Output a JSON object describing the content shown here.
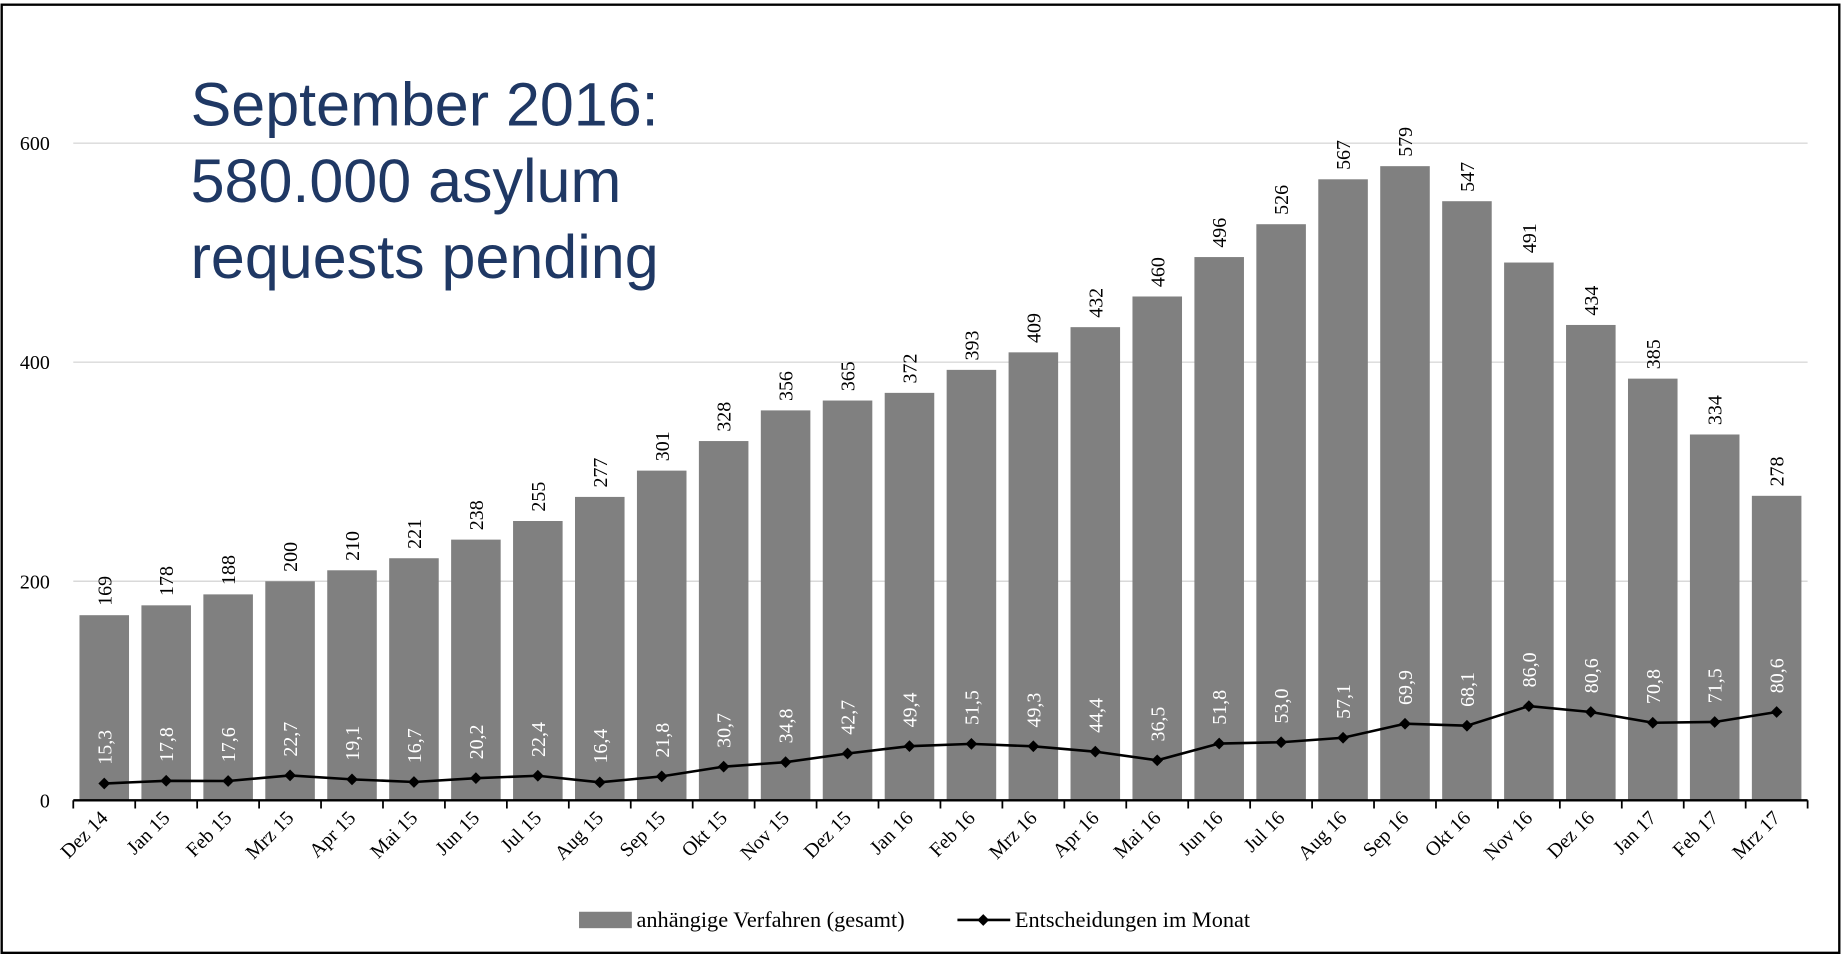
{
  "chart_data": {
    "type": "bar",
    "annotation": [
      "September 2016:",
      "580.000 asylum",
      "requests pending"
    ],
    "categories": [
      "Dez 14",
      "Jan 15",
      "Feb 15",
      "Mrz 15",
      "Apr 15",
      "Mai 15",
      "Jun 15",
      "Jul 15",
      "Aug 15",
      "Sep 15",
      "Okt 15",
      "Nov 15",
      "Dez 15",
      "Jan 16",
      "Feb 16",
      "Mrz 16",
      "Apr 16",
      "Mai 16",
      "Jun 16",
      "Jul 16",
      "Aug 16",
      "Sep 16",
      "Okt 16",
      "Nov 16",
      "Dez 16",
      "Jan 17",
      "Feb 17",
      "Mrz 17"
    ],
    "series": [
      {
        "name": "anhängige Verfahren (gesamt)",
        "type": "bar",
        "color": "#808080",
        "values": [
          169,
          178,
          188,
          200,
          210,
          221,
          238,
          255,
          277,
          301,
          328,
          356,
          365,
          372,
          393,
          409,
          432,
          460,
          496,
          526,
          567,
          579,
          547,
          491,
          434,
          385,
          334,
          278
        ]
      },
      {
        "name": "Entscheidungen im Monat",
        "type": "line",
        "color": "#000000",
        "values": [
          15.3,
          17.8,
          17.6,
          22.7,
          19.1,
          16.7,
          20.2,
          22.4,
          16.4,
          21.8,
          30.7,
          34.8,
          42.7,
          49.4,
          51.5,
          49.3,
          44.4,
          36.5,
          51.8,
          53.0,
          57.1,
          69.9,
          68.1,
          86.0,
          80.6,
          70.8,
          71.5,
          80.6
        ],
        "value_labels": [
          "15,3",
          "17,8",
          "17,6",
          "22,7",
          "19,1",
          "16,7",
          "20,2",
          "22,4",
          "16,4",
          "21,8",
          "30,7",
          "34,8",
          "42,7",
          "49,4",
          "51,5",
          "49,3",
          "44,4",
          "36,5",
          "51,8",
          "53,0",
          "57,1",
          "69,9",
          "68,1",
          "86,0",
          "80,6",
          "70,8",
          "71,5",
          "80,6"
        ]
      }
    ],
    "ylim": [
      0,
      600
    ],
    "yticks": [
      0,
      200,
      400,
      600
    ],
    "grid": true,
    "legend": "bottom"
  }
}
